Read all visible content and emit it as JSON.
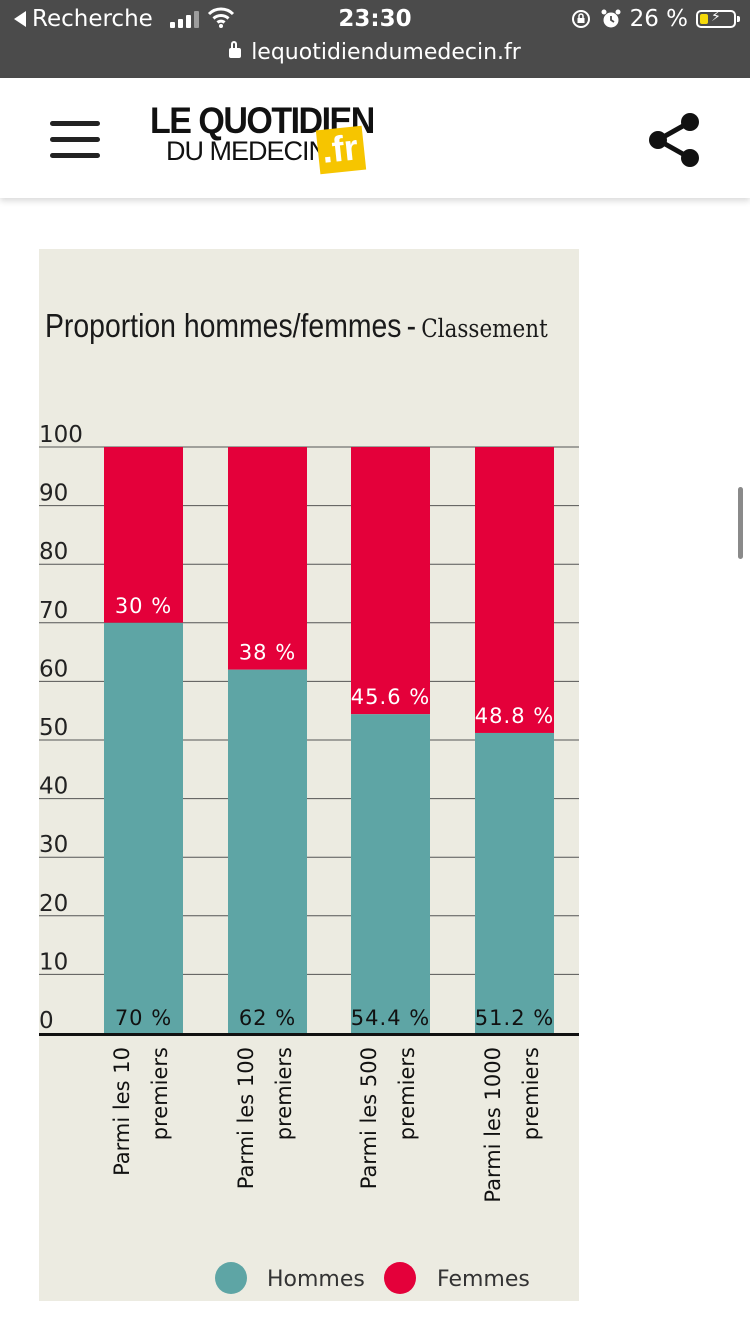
{
  "status_bar": {
    "back_label": "Recherche",
    "time": "23:30",
    "battery": "26 %",
    "url": "lequotidiendumedecin.fr"
  },
  "header": {
    "logo_line1": "LE QUOTIDIEN",
    "logo_line2": "DU MEDECIN",
    "logo_badge": ".fr",
    "menu_icon": "hamburger-menu-icon",
    "share_icon": "share-icon"
  },
  "chart_data": {
    "type": "bar",
    "stacked": true,
    "title": "Proportion hommes/femmes",
    "title_separator": "-",
    "subtitle": "Classement",
    "categories": [
      "Parmi les 10 premiers",
      "Parmi les 100 premiers",
      "Parmi les 500 premiers",
      "Parmi les 1000 premiers"
    ],
    "category_lines": [
      [
        "Parmi les 10",
        "premiers"
      ],
      [
        "Parmi les 100",
        "premiers"
      ],
      [
        "Parmi les 500",
        "premiers"
      ],
      [
        "Parmi les 1000",
        "premiers"
      ]
    ],
    "series": [
      {
        "name": "Hommes",
        "color": "#5ea5a5",
        "values": [
          70,
          62,
          54.4,
          51.2
        ],
        "labels": [
          "70 %",
          "62 %",
          "54.4 %",
          "51.2 %"
        ]
      },
      {
        "name": "Femmes",
        "color": "#e4003a",
        "values": [
          30,
          38,
          45.6,
          48.8
        ],
        "labels": [
          "30 %",
          "38 %",
          "45.6 %",
          "48.8 %"
        ]
      }
    ],
    "ylim": [
      0,
      100
    ],
    "yticks": [
      "0",
      "10",
      "20",
      "30",
      "40",
      "50",
      "60",
      "70",
      "80",
      "90",
      "100"
    ],
    "grid": true,
    "legend": "bottom"
  }
}
